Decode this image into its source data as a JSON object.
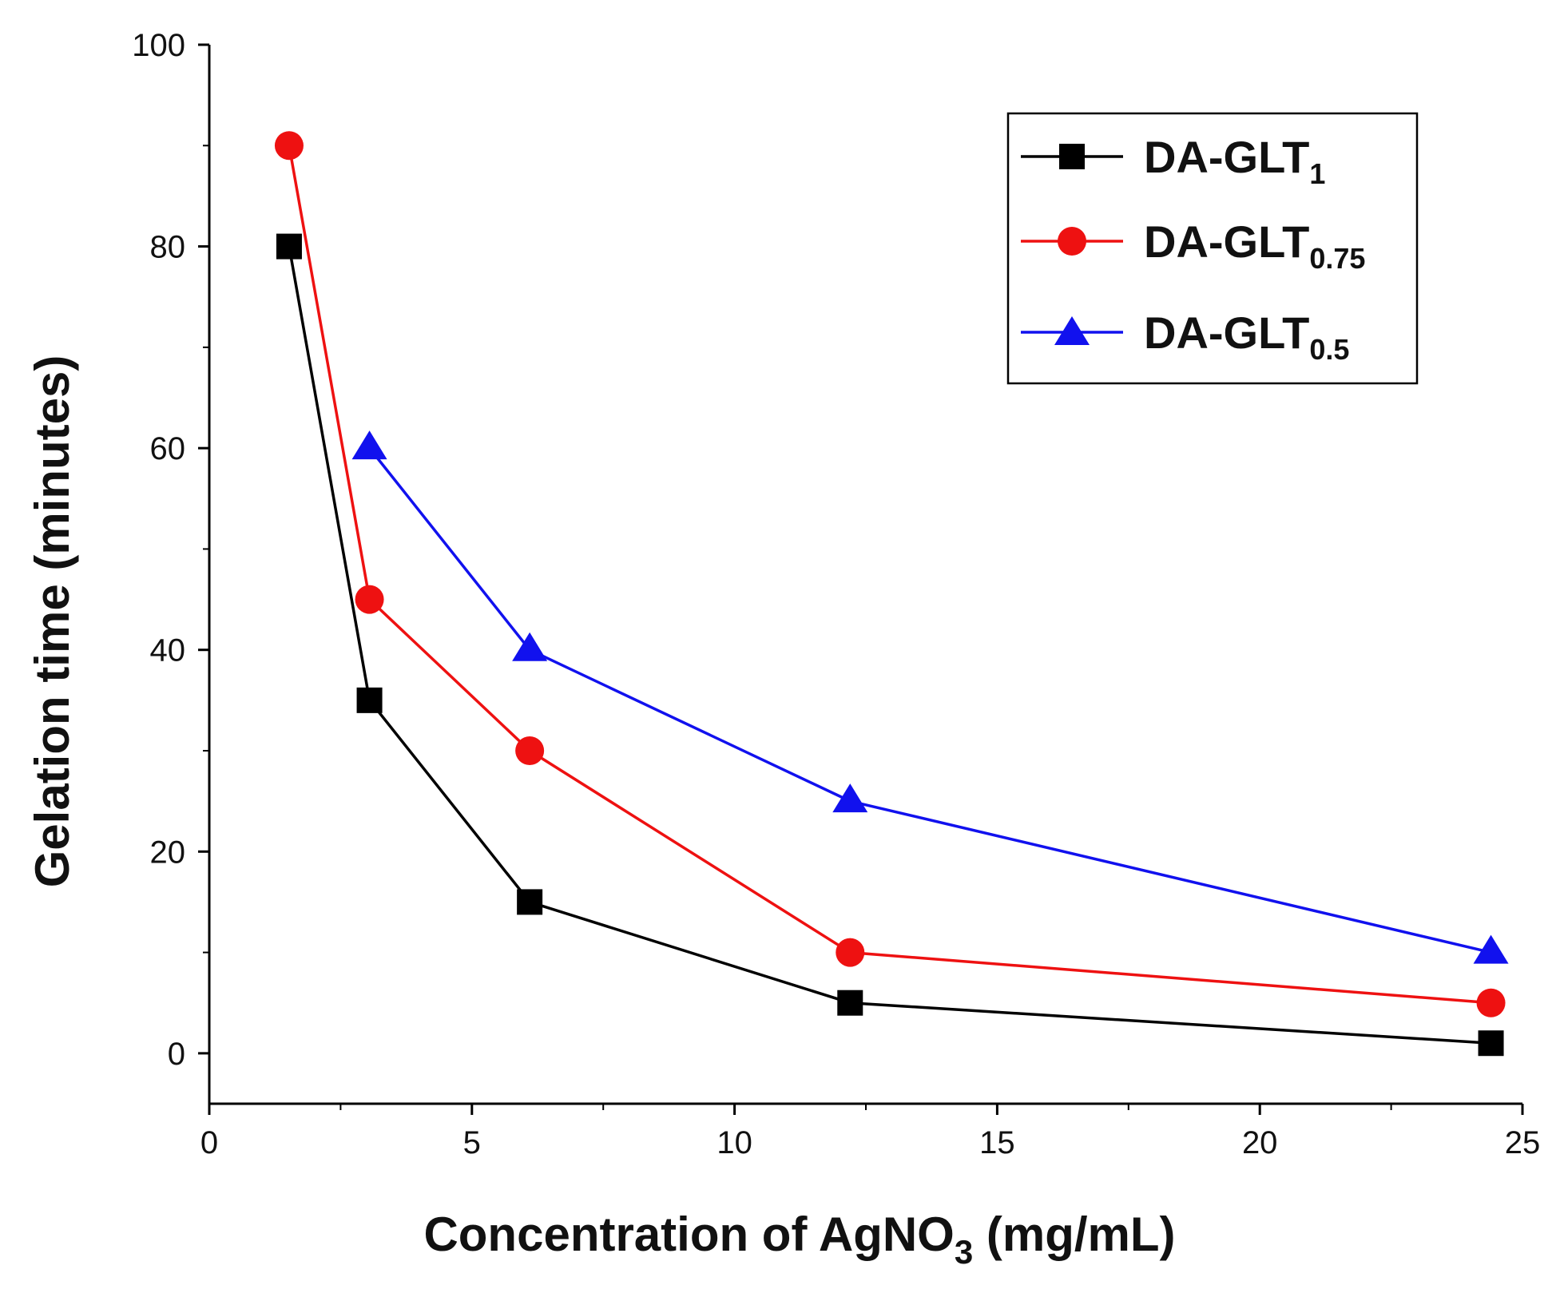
{
  "chart_data": {
    "type": "line",
    "title": "",
    "xlabel": "Concentration of AgNO3 (mg/mL)",
    "xlabel_parts": {
      "main": "Concentration of AgNO",
      "sub": "3",
      "tail": " (mg/mL)"
    },
    "ylabel": "Gelation time (minutes)",
    "xlim": [
      0,
      25
    ],
    "ylim": [
      -5,
      100
    ],
    "x_ticks": [
      0,
      5,
      10,
      15,
      20,
      25
    ],
    "y_ticks": [
      0,
      20,
      40,
      60,
      80,
      100
    ],
    "x_ticks_text": [
      "0",
      "5",
      "10",
      "15",
      "20",
      "25"
    ],
    "y_ticks_text": [
      "0",
      "20",
      "40",
      "60",
      "80",
      "100"
    ],
    "grid": false,
    "legend_position": "top-right",
    "series": [
      {
        "name": "DA-GLT1",
        "label_main": "DA-GLT",
        "label_sub": "1",
        "color": "#000000",
        "marker": "square",
        "x": [
          1.52,
          3.05,
          6.1,
          12.2,
          24.4
        ],
        "y": [
          80,
          35,
          15,
          5,
          1
        ]
      },
      {
        "name": "DA-GLT0.75",
        "label_main": "DA-GLT",
        "label_sub": "0.75",
        "color": "#ee1111",
        "marker": "circle",
        "x": [
          1.52,
          3.05,
          6.1,
          12.2,
          24.4
        ],
        "y": [
          90,
          45,
          30,
          10,
          5
        ]
      },
      {
        "name": "DA-GLT0.5",
        "label_main": "DA-GLT",
        "label_sub": "0.5",
        "color": "#1111ee",
        "marker": "triangle",
        "x": [
          3.05,
          6.1,
          12.2,
          24.4
        ],
        "y": [
          60,
          40,
          25,
          10
        ]
      }
    ]
  }
}
